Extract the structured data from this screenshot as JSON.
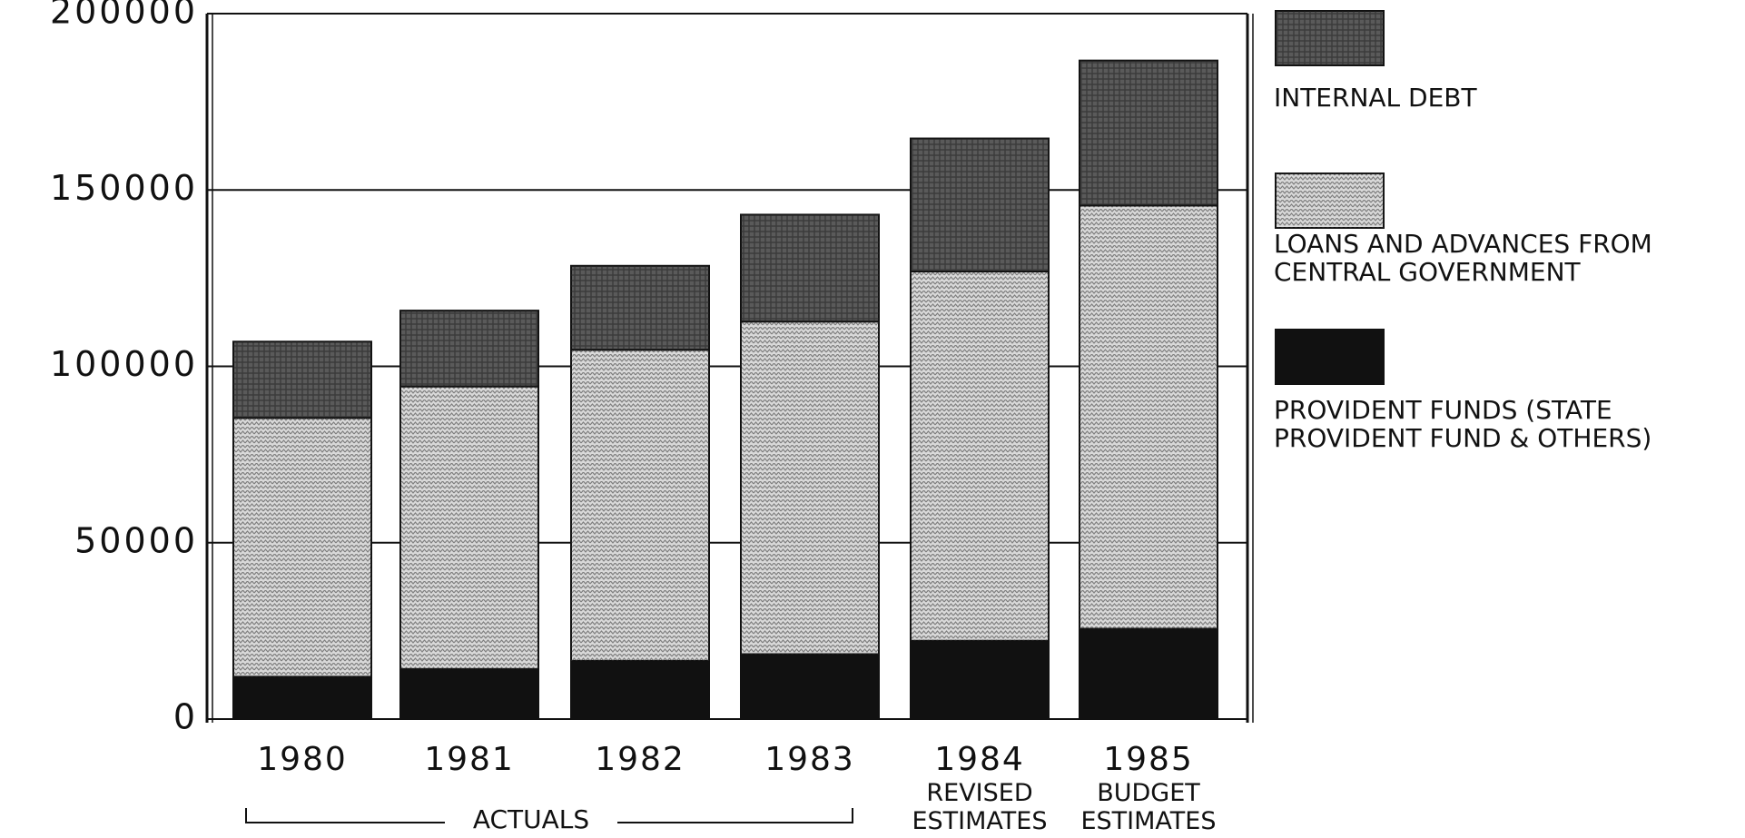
{
  "chart_data": {
    "type": "stacked_bar",
    "categories": [
      "1980",
      "1981",
      "1982",
      "1983",
      "1984",
      "1985"
    ],
    "series": [
      {
        "name": "PROVIDENT FUNDS (STATE PROVIDENT FUND & OTHERS)",
        "color": "#111111",
        "values": [
          12000,
          14200,
          16500,
          18400,
          22200,
          25600
        ]
      },
      {
        "name": "LOANS AND ADVANCES FROM CENTRAL GOVERNMENT",
        "color": "#d9d9d9",
        "values": [
          73400,
          80100,
          88200,
          94300,
          104700,
          120000
        ]
      },
      {
        "name": "INTERNAL DEBT",
        "color": "#5a5a5a",
        "values": [
          21600,
          21500,
          23800,
          30300,
          37700,
          41100
        ]
      }
    ],
    "annotations": [
      "ACTUALS",
      "REVISED ESTIMATES",
      "BUDGET ESTIMATES"
    ],
    "ylim": [
      0,
      200000
    ],
    "yticks": [
      0,
      50000,
      100000,
      150000,
      200000
    ],
    "grid": true
  }
}
